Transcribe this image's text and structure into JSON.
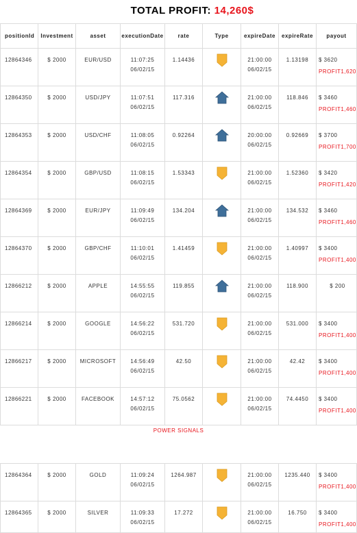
{
  "header": {
    "label": "TOTAL PROFIT:",
    "value": "14,260$"
  },
  "columns": [
    "positionId",
    "Investment",
    "asset",
    "executionDate",
    "rate",
    "Type",
    "expireDate",
    "expireRate",
    "payout"
  ],
  "rows_a": [
    {
      "id": "12864346",
      "inv": "$ 2000",
      "asset": "EUR/USD",
      "time": "11:07:25",
      "date": "06/02/15",
      "rate": "1.14436",
      "type": "down",
      "etime": "21:00:00",
      "edate": "06/02/15",
      "erate": "1.13198",
      "payout": "$ 3620",
      "profit": "PROFIT1,620"
    },
    {
      "id": "12864350",
      "inv": "$ 2000",
      "asset": "USD/JPY",
      "time": "11:07:51",
      "date": "06/02/15",
      "rate": "117.316",
      "type": "up",
      "etime": "21:00:00",
      "edate": "06/02/15",
      "erate": "118.846",
      "payout": "$ 3460",
      "profit": "PROFIT1,460"
    },
    {
      "id": "12864353",
      "inv": "$ 2000",
      "asset": "USD/CHF",
      "time": "11:08:05",
      "date": "06/02/15",
      "rate": "0.92264",
      "type": "up",
      "etime": "20:00:00",
      "edate": "06/02/15",
      "erate": "0.92669",
      "payout": "$ 3700",
      "profit": "PROFIT1,700"
    },
    {
      "id": "12864354",
      "inv": "$ 2000",
      "asset": "GBP/USD",
      "time": "11:08:15",
      "date": "06/02/15",
      "rate": "1.53343",
      "type": "down",
      "etime": "21:00:00",
      "edate": "06/02/15",
      "erate": "1.52360",
      "payout": "$ 3420",
      "profit": "PROFIT1,420"
    },
    {
      "id": "12864369",
      "inv": "$ 2000",
      "asset": "EUR/JPY",
      "time": "11:09:49",
      "date": "06/02/15",
      "rate": "134.204",
      "type": "up",
      "etime": "21:00:00",
      "edate": "06/02/15",
      "erate": "134.532",
      "payout": "$ 3460",
      "profit": "PROFIT1,460"
    },
    {
      "id": "12864370",
      "inv": "$ 2000",
      "asset": "GBP/CHF",
      "time": "11:10:01",
      "date": "06/02/15",
      "rate": "1.41459",
      "type": "down",
      "etime": "21:00:00",
      "edate": "06/02/15",
      "erate": "1.40997",
      "payout": "$ 3400",
      "profit": "PROFIT1,400"
    },
    {
      "id": "12866212",
      "inv": "$ 2000",
      "asset": "APPLE",
      "time": "14:55:55",
      "date": "06/02/15",
      "rate": "119.855",
      "type": "up",
      "etime": "21:00:00",
      "edate": "06/02/15",
      "erate": "118.900",
      "payout": "$ 200",
      "profit": ""
    },
    {
      "id": "12866214",
      "inv": "$ 2000",
      "asset": "GOOGLE",
      "time": "14:56:22",
      "date": "06/02/15",
      "rate": "531.720",
      "type": "down",
      "etime": "21:00:00",
      "edate": "06/02/15",
      "erate": "531.000",
      "payout": "$ 3400",
      "profit": "PROFIT1,400"
    },
    {
      "id": "12866217",
      "inv": "$ 2000",
      "asset": "MICROSOFT",
      "time": "14:56:49",
      "date": "06/02/15",
      "rate": "42.50",
      "type": "down",
      "etime": "21:00:00",
      "edate": "06/02/15",
      "erate": "42.42",
      "payout": "$ 3400",
      "profit": "PROFIT1,400"
    },
    {
      "id": "12866221",
      "inv": "$ 2000",
      "asset": "FACEBOOK",
      "time": "14:57:12",
      "date": "06/02/15",
      "rate": "75.0562",
      "type": "down",
      "etime": "21:00:00",
      "edate": "06/02/15",
      "erate": "74.4450",
      "payout": "$ 3400",
      "profit": "PROFIT1,400"
    }
  ],
  "separator": "POWER SIGNALS",
  "rows_b": [
    {
      "id": "12864364",
      "inv": "$ 2000",
      "asset": "GOLD",
      "time": "11:09:24",
      "date": "06/02/15",
      "rate": "1264.987",
      "type": "down",
      "etime": "21:00:00",
      "edate": "06/02/15",
      "erate": "1235.440",
      "payout": "$ 3400",
      "profit": "PROFIT1,400"
    },
    {
      "id": "12864365",
      "inv": "$ 2000",
      "asset": "SILVER",
      "time": "11:09:33",
      "date": "06/02/15",
      "rate": "17.272",
      "type": "down",
      "etime": "21:00:00",
      "edate": "06/02/15",
      "erate": "16.750",
      "payout": "$ 3400",
      "profit": "PROFIT1,400"
    }
  ],
  "colors": {
    "profit": "#e8141c",
    "down_arrow": "#f5b335",
    "up_arrow": "#3f6f9a"
  },
  "icons": {
    "down": "arrow-down-icon",
    "up": "arrow-up-icon"
  }
}
